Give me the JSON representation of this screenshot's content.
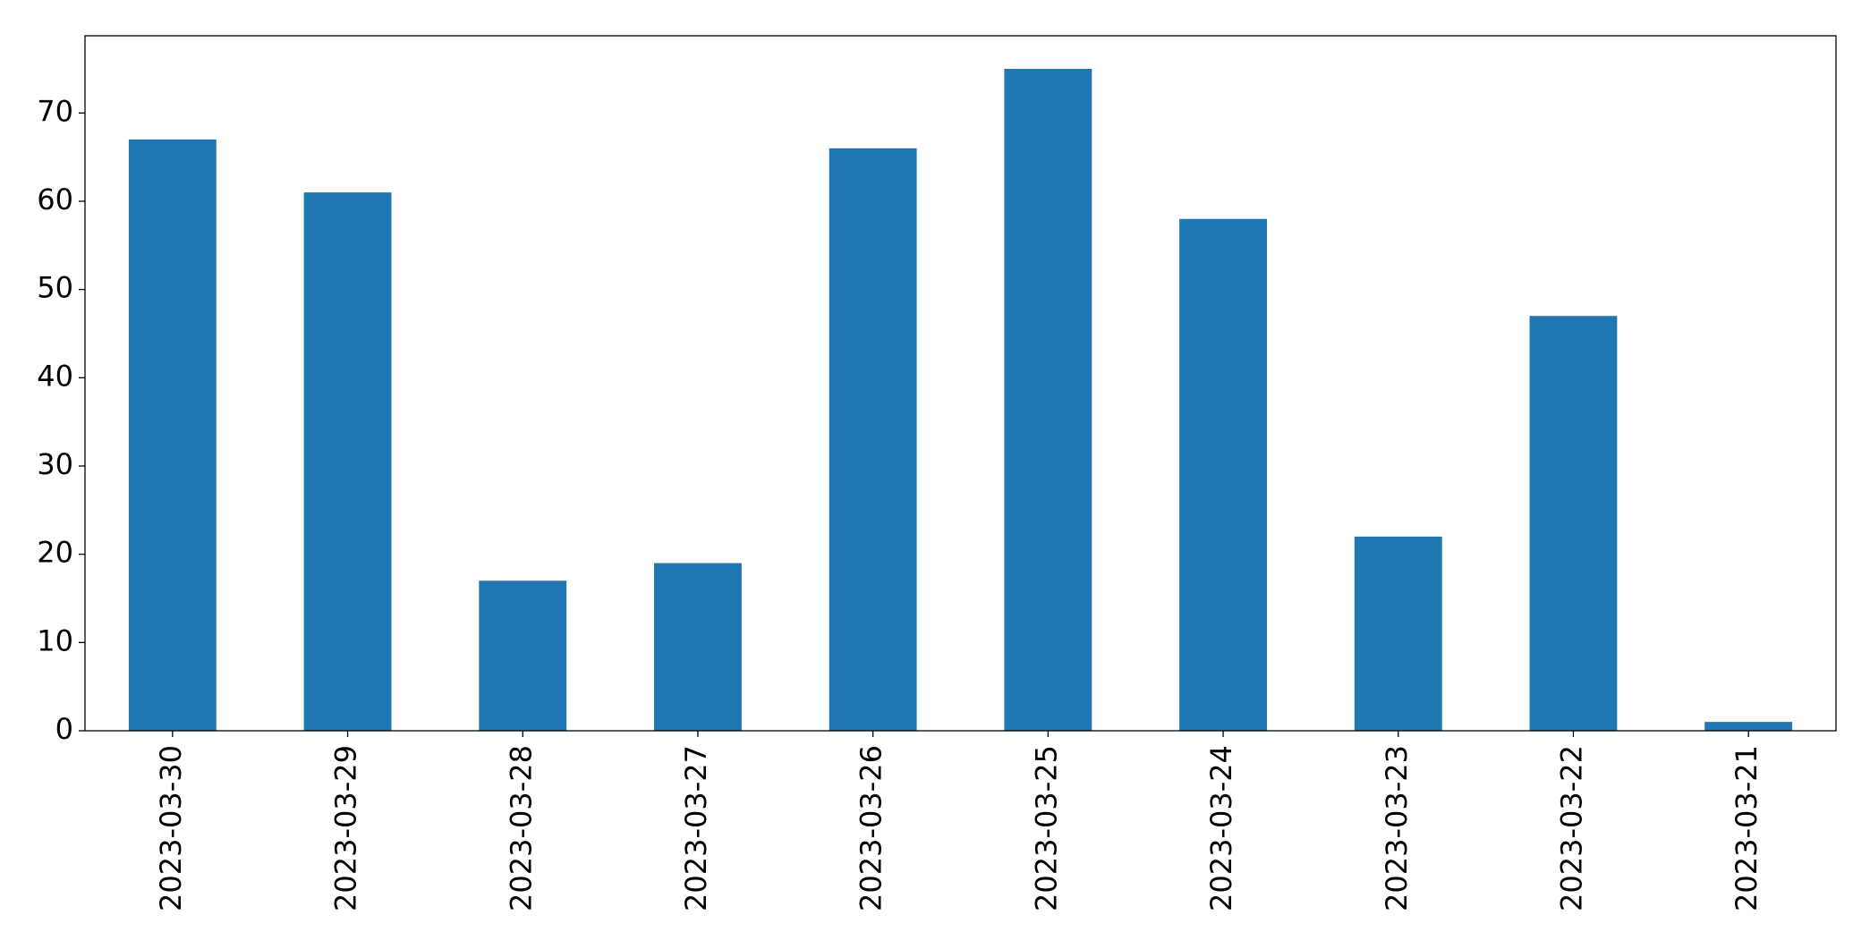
{
  "chart_data": {
    "type": "bar",
    "categories": [
      "2023-03-30",
      "2023-03-29",
      "2023-03-28",
      "2023-03-27",
      "2023-03-26",
      "2023-03-25",
      "2023-03-24",
      "2023-03-23",
      "2023-03-22",
      "2023-03-21"
    ],
    "values": [
      67,
      61,
      17,
      19,
      66,
      75,
      58,
      22,
      47,
      1
    ],
    "color": "#1f77b4",
    "ylim": [
      0,
      78.75
    ],
    "yticks": [
      0,
      10,
      20,
      30,
      40,
      50,
      60,
      70
    ]
  }
}
